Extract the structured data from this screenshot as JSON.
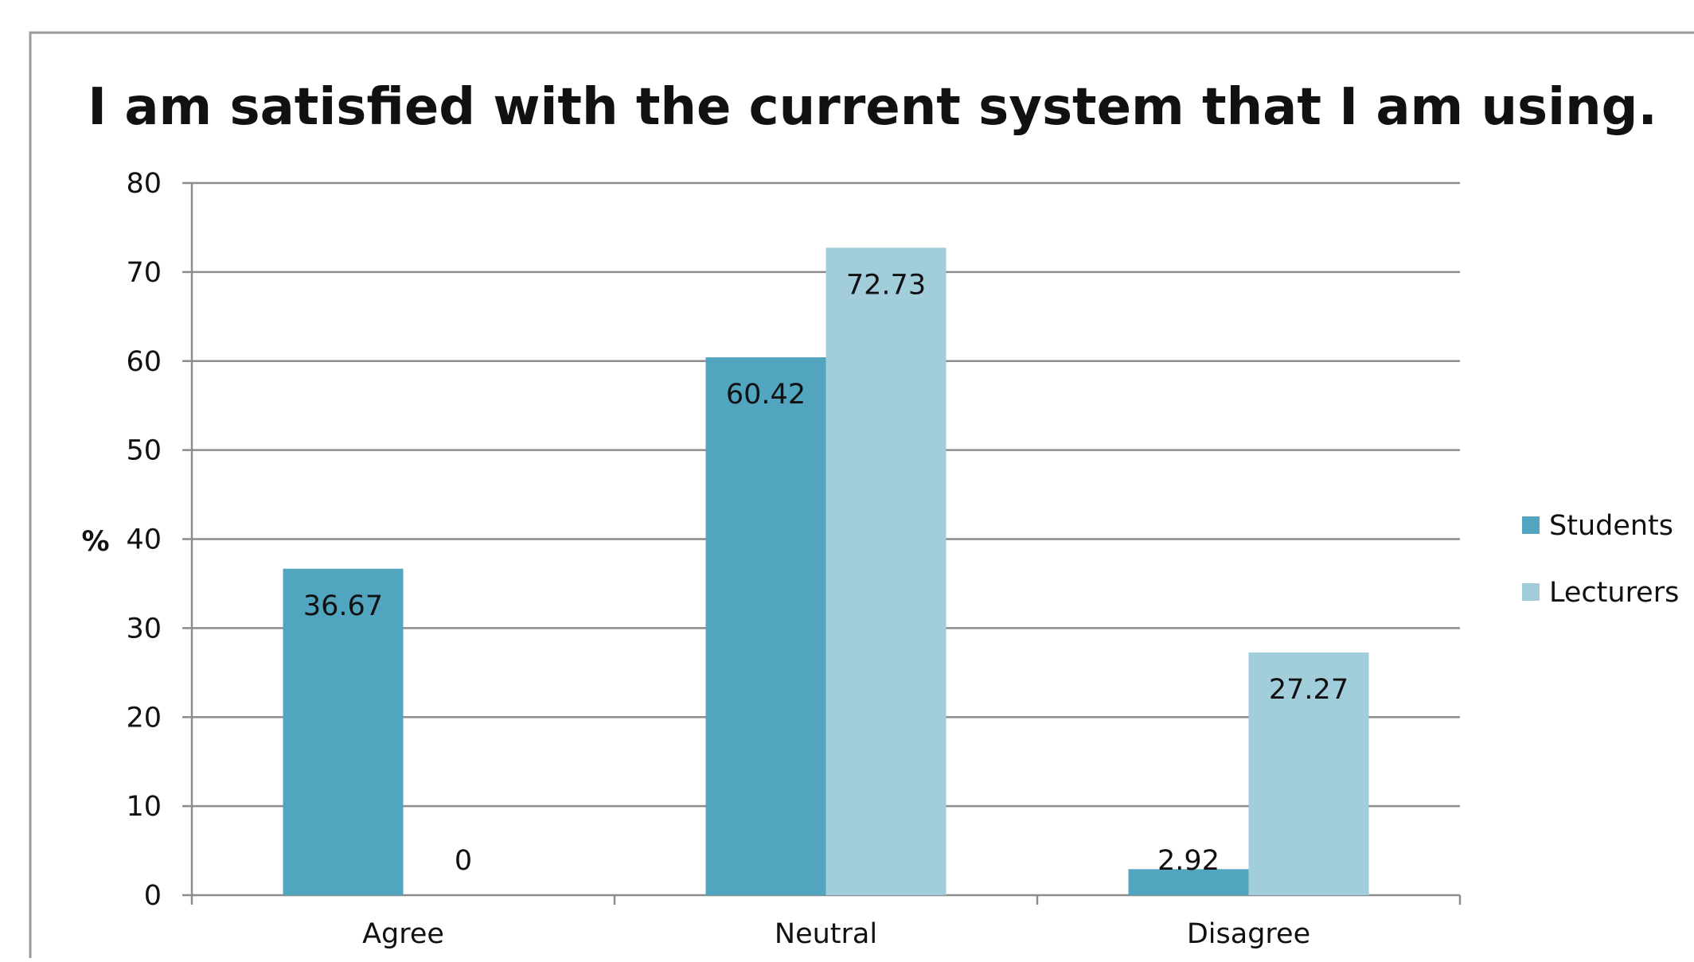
{
  "chart_data": {
    "type": "bar",
    "title": "I am satisfied with the current system that I am using.",
    "xlabel": "",
    "ylabel": "%",
    "ylim": [
      0,
      80
    ],
    "yticks": [
      0,
      10,
      20,
      30,
      40,
      50,
      60,
      70,
      80
    ],
    "grid": true,
    "legend_position": "right",
    "categories": [
      "Agree",
      "Neutral",
      "Disagree"
    ],
    "series": [
      {
        "name": "Students",
        "color": "#52A5BE",
        "values": [
          36.67,
          60.42,
          2.92
        ],
        "labels": [
          "36.67",
          "60.42",
          "2.92"
        ]
      },
      {
        "name": "Lecturers",
        "color": "#A2CDDB",
        "values": [
          0,
          72.73,
          27.27
        ],
        "labels": [
          "0",
          "72.73",
          "27.27"
        ]
      }
    ]
  }
}
